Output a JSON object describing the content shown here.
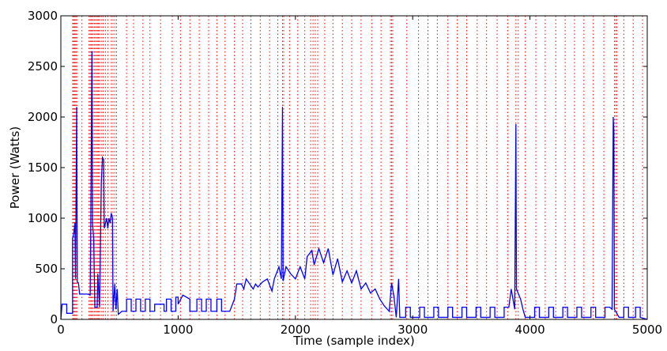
{
  "chart_data": {
    "type": "line",
    "xlabel": "Time (sample index)",
    "ylabel": "Power (Watts)",
    "xlim": [
      0,
      5000
    ],
    "ylim": [
      0,
      3000
    ],
    "xticks": [
      0,
      1000,
      2000,
      3000,
      4000,
      5000
    ],
    "yticks": [
      0,
      500,
      1000,
      1500,
      2000,
      2500,
      3000
    ],
    "event_lines": {
      "color": "#ff0000",
      "x": [
        100,
        108,
        115,
        122,
        130,
        140,
        180,
        240,
        250,
        258,
        265,
        275,
        285,
        295,
        305,
        315,
        322,
        330,
        345,
        360,
        380,
        400,
        430,
        445,
        460,
        475,
        560,
        620,
        700,
        760,
        850,
        950,
        1020,
        1100,
        1180,
        1260,
        1330,
        1400,
        1480,
        1550,
        1620,
        1700,
        1780,
        1850,
        1890,
        1900,
        1950,
        2020,
        2080,
        2130,
        2150,
        2170,
        2190,
        2250,
        2320,
        2400,
        2480,
        2560,
        2650,
        2730,
        2810,
        2820,
        2830,
        2950,
        3050,
        3130,
        3210,
        3300,
        3380,
        3460,
        3550,
        3630,
        3720,
        3810,
        3880,
        3900,
        3960,
        4050,
        4130,
        4220,
        4300,
        4380,
        4460,
        4540,
        4630,
        4720,
        4730,
        4740,
        4800,
        4880,
        4960
      ]
    },
    "series": [
      {
        "color": "#0000ff",
        "x": [
          0,
          10,
          50,
          50,
          100,
          100,
          110,
          120,
          125,
          135,
          140,
          150,
          160,
          230,
          250,
          255,
          265,
          270,
          280,
          290,
          310,
          315,
          330,
          340,
          345,
          355,
          365,
          370,
          390,
          400,
          410,
          420,
          430,
          440,
          445,
          460,
          470,
          480,
          490,
          520,
          560,
          560,
          600,
          600,
          640,
          640,
          680,
          680,
          720,
          720,
          760,
          760,
          800,
          800,
          880,
          880,
          900,
          900,
          940,
          940,
          980,
          980,
          1000,
          1000,
          1040,
          1100,
          1100,
          1160,
          1160,
          1200,
          1200,
          1240,
          1240,
          1280,
          1280,
          1330,
          1330,
          1370,
          1370,
          1440,
          1480,
          1500,
          1540,
          1560,
          1580,
          1640,
          1660,
          1680,
          1720,
          1760,
          1800,
          1820,
          1860,
          1880,
          1890,
          1895,
          1920,
          1960,
          2000,
          2040,
          2080,
          2100,
          2140,
          2160,
          2200,
          2240,
          2280,
          2320,
          2360,
          2400,
          2440,
          2480,
          2520,
          2560,
          2600,
          2640,
          2680,
          2720,
          2760,
          2800,
          2820,
          2840,
          2860,
          2880,
          2890,
          2940,
          2940,
          2980,
          2980,
          3060,
          3060,
          3100,
          3100,
          3180,
          3180,
          3220,
          3220,
          3300,
          3300,
          3340,
          3340,
          3420,
          3420,
          3460,
          3460,
          3540,
          3540,
          3580,
          3580,
          3660,
          3660,
          3700,
          3700,
          3780,
          3780,
          3820,
          3840,
          3870,
          3880,
          3885,
          3920,
          3940,
          3960,
          4040,
          4040,
          4080,
          4080,
          4160,
          4160,
          4200,
          4200,
          4280,
          4280,
          4320,
          4320,
          4400,
          4400,
          4440,
          4440,
          4520,
          4520,
          4560,
          4560,
          4640,
          4640,
          4680,
          4700,
          4710,
          4715,
          4720,
          4760,
          4800,
          4800,
          4840,
          4840,
          4900,
          4900,
          4940,
          4940,
          5000
        ],
        "values": [
          0,
          150,
          150,
          60,
          60,
          800,
          850,
          950,
          400,
          2100,
          370,
          360,
          250,
          250,
          240,
          900,
          2650,
          950,
          800,
          120,
          120,
          450,
          120,
          950,
          1350,
          1600,
          1580,
          900,
          1000,
          900,
          1000,
          950,
          1050,
          1000,
          80,
          350,
          100,
          300,
          50,
          80,
          80,
          200,
          200,
          80,
          80,
          200,
          200,
          80,
          80,
          200,
          200,
          80,
          80,
          150,
          150,
          80,
          80,
          200,
          200,
          80,
          80,
          220,
          220,
          150,
          240,
          200,
          80,
          80,
          200,
          200,
          80,
          80,
          200,
          200,
          80,
          80,
          200,
          200,
          80,
          80,
          200,
          350,
          350,
          300,
          400,
          300,
          350,
          320,
          370,
          400,
          280,
          400,
          520,
          400,
          2100,
          380,
          520,
          450,
          400,
          520,
          400,
          620,
          680,
          540,
          700,
          560,
          700,
          440,
          600,
          370,
          480,
          360,
          480,
          300,
          360,
          260,
          300,
          200,
          130,
          80,
          360,
          230,
          20,
          400,
          20,
          20,
          120,
          120,
          20,
          20,
          120,
          120,
          20,
          20,
          120,
          120,
          20,
          20,
          120,
          120,
          20,
          20,
          120,
          120,
          20,
          20,
          120,
          120,
          20,
          20,
          120,
          120,
          20,
          20,
          120,
          120,
          300,
          100,
          1930,
          300,
          200,
          100,
          20,
          20,
          120,
          120,
          20,
          20,
          120,
          120,
          20,
          20,
          120,
          120,
          20,
          20,
          120,
          120,
          20,
          20,
          120,
          120,
          20,
          20,
          120,
          120,
          100,
          2000,
          1850,
          100,
          20,
          20,
          120,
          120,
          20,
          20,
          120,
          120,
          20,
          0
        ]
      }
    ]
  }
}
